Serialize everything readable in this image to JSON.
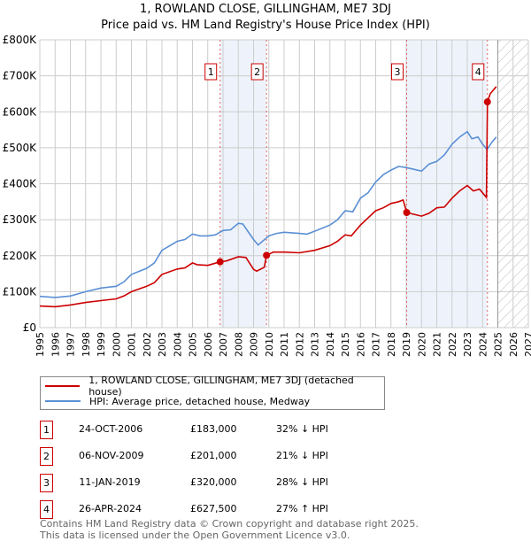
{
  "title": "1, ROWLAND CLOSE, GILLINGHAM, ME7 3DJ",
  "subtitle": "Price paid vs. HM Land Registry's House Price Index (HPI)",
  "colors": {
    "property": "#cc0000",
    "hpi": "#5b8fd4",
    "shade": "#eef3fb",
    "marker_border": "#cc0000"
  },
  "chart_data": {
    "type": "line",
    "title": "1, ROWLAND CLOSE, GILLINGHAM, ME7 3DJ",
    "xlim": [
      1995,
      2027
    ],
    "ylim": [
      0,
      800000
    ],
    "x_ticks": [
      "1995",
      "1996",
      "1997",
      "1998",
      "1999",
      "2000",
      "2001",
      "2002",
      "2003",
      "2004",
      "2005",
      "2006",
      "2007",
      "2008",
      "2009",
      "2010",
      "2011",
      "2012",
      "2013",
      "2014",
      "2015",
      "2016",
      "2017",
      "2018",
      "2019",
      "2020",
      "2021",
      "2022",
      "2023",
      "2024",
      "2025",
      "2026",
      "2027"
    ],
    "y_ticks": [
      {
        "v": 0,
        "label": "£0"
      },
      {
        "v": 100000,
        "label": "£100K"
      },
      {
        "v": 200000,
        "label": "£200K"
      },
      {
        "v": 300000,
        "label": "£300K"
      },
      {
        "v": 400000,
        "label": "£400K"
      },
      {
        "v": 500000,
        "label": "£500K"
      },
      {
        "v": 600000,
        "label": "£600K"
      },
      {
        "v": 700000,
        "label": "£700K"
      },
      {
        "v": 800000,
        "label": "£800K"
      }
    ],
    "grid": true,
    "forecast_from": 2025,
    "shaded_ranges": [
      [
        2006.81,
        2009.85
      ],
      [
        2019.03,
        2024.32
      ]
    ],
    "series": [
      {
        "name": "1, ROWLAND CLOSE, GILLINGHAM, ME7 3DJ (detached house)",
        "color": "#cc0000",
        "points": [
          [
            1995,
            60
          ],
          [
            1996,
            58
          ],
          [
            1997,
            63
          ],
          [
            1998,
            70
          ],
          [
            1999,
            75
          ],
          [
            2000,
            80
          ],
          [
            2000.5,
            88
          ],
          [
            2001,
            100
          ],
          [
            2002,
            115
          ],
          [
            2002.5,
            125
          ],
          [
            2003,
            148
          ],
          [
            2004,
            163
          ],
          [
            2004.5,
            166
          ],
          [
            2005,
            180
          ],
          [
            2005.3,
            175
          ],
          [
            2006,
            173
          ],
          [
            2006.81,
            183
          ],
          [
            2007.2,
            185
          ],
          [
            2008,
            197
          ],
          [
            2008.5,
            195
          ],
          [
            2009,
            162
          ],
          [
            2009.2,
            157
          ],
          [
            2009.7,
            168
          ],
          [
            2009.85,
            201
          ],
          [
            2010.3,
            210
          ],
          [
            2011,
            210
          ],
          [
            2012,
            208
          ],
          [
            2013,
            215
          ],
          [
            2014,
            228
          ],
          [
            2014.5,
            240
          ],
          [
            2015,
            258
          ],
          [
            2015.4,
            255
          ],
          [
            2016,
            285
          ],
          [
            2016.5,
            305
          ],
          [
            2017,
            325
          ],
          [
            2017.5,
            333
          ],
          [
            2018,
            345
          ],
          [
            2018.5,
            350
          ],
          [
            2018.8,
            355
          ],
          [
            2019.03,
            320
          ],
          [
            2019.5,
            315
          ],
          [
            2020,
            310
          ],
          [
            2020.5,
            318
          ],
          [
            2021,
            333
          ],
          [
            2021.5,
            335
          ],
          [
            2022,
            360
          ],
          [
            2022.5,
            380
          ],
          [
            2023,
            395
          ],
          [
            2023.4,
            380
          ],
          [
            2023.8,
            385
          ],
          [
            2024.25,
            362
          ],
          [
            2024.32,
            627.5
          ],
          [
            2024.5,
            650
          ],
          [
            2024.9,
            670
          ]
        ]
      },
      {
        "name": "HPI: Average price, detached house, Medway",
        "color": "#5b8fd4",
        "points": [
          [
            1995,
            87
          ],
          [
            1996,
            84
          ],
          [
            1997,
            88
          ],
          [
            1998,
            100
          ],
          [
            1999,
            110
          ],
          [
            2000,
            115
          ],
          [
            2000.5,
            127
          ],
          [
            2001,
            148
          ],
          [
            2002,
            165
          ],
          [
            2002.5,
            180
          ],
          [
            2003,
            215
          ],
          [
            2004,
            240
          ],
          [
            2004.5,
            245
          ],
          [
            2005,
            260
          ],
          [
            2005.5,
            255
          ],
          [
            2006,
            255
          ],
          [
            2006.5,
            258
          ],
          [
            2007,
            270
          ],
          [
            2007.5,
            272
          ],
          [
            2008,
            290
          ],
          [
            2008.3,
            288
          ],
          [
            2009,
            245
          ],
          [
            2009.3,
            230
          ],
          [
            2010,
            255
          ],
          [
            2010.5,
            262
          ],
          [
            2011,
            265
          ],
          [
            2012,
            262
          ],
          [
            2012.5,
            260
          ],
          [
            2013,
            268
          ],
          [
            2014,
            285
          ],
          [
            2014.5,
            300
          ],
          [
            2015,
            325
          ],
          [
            2015.5,
            322
          ],
          [
            2016,
            360
          ],
          [
            2016.5,
            375
          ],
          [
            2017,
            405
          ],
          [
            2017.5,
            425
          ],
          [
            2018,
            438
          ],
          [
            2018.5,
            448
          ],
          [
            2019,
            445
          ],
          [
            2019.5,
            440
          ],
          [
            2020,
            435
          ],
          [
            2020.5,
            455
          ],
          [
            2021,
            462
          ],
          [
            2021.5,
            480
          ],
          [
            2022,
            510
          ],
          [
            2022.5,
            530
          ],
          [
            2023,
            545
          ],
          [
            2023.3,
            525
          ],
          [
            2023.7,
            530
          ],
          [
            2024,
            510
          ],
          [
            2024.3,
            495
          ],
          [
            2024.6,
            515
          ],
          [
            2024.9,
            530
          ]
        ]
      }
    ],
    "sales": [
      {
        "label": "1",
        "x": 2006.81,
        "y": 183
      },
      {
        "label": "2",
        "x": 2009.85,
        "y": 201
      },
      {
        "label": "3",
        "x": 2019.03,
        "y": 320
      },
      {
        "label": "4",
        "x": 2024.32,
        "y": 627.5
      }
    ]
  },
  "legend": {
    "property": "1, ROWLAND CLOSE, GILLINGHAM, ME7 3DJ (detached house)",
    "hpi": "HPI: Average price, detached house, Medway"
  },
  "transactions": [
    {
      "num": "1",
      "date": "24-OCT-2006",
      "price": "£183,000",
      "hpi": "32% ↓ HPI"
    },
    {
      "num": "2",
      "date": "06-NOV-2009",
      "price": "£201,000",
      "hpi": "21% ↓ HPI"
    },
    {
      "num": "3",
      "date": "11-JAN-2019",
      "price": "£320,000",
      "hpi": "28% ↓ HPI"
    },
    {
      "num": "4",
      "date": "26-APR-2024",
      "price": "£627,500",
      "hpi": "27% ↑ HPI"
    }
  ],
  "footer": {
    "line1": "Contains HM Land Registry data © Crown copyright and database right 2025.",
    "line2": "This data is licensed under the Open Government Licence v3.0."
  }
}
